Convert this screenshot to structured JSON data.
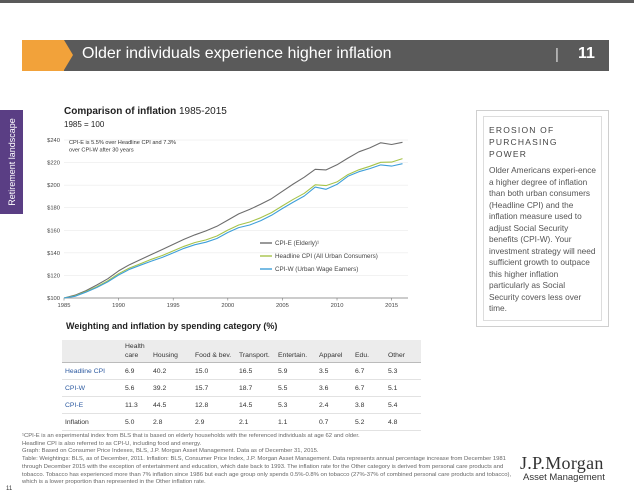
{
  "header": {
    "title": "Older individuals experience higher inflation",
    "separator": "|",
    "page_number": "11"
  },
  "side_tab": {
    "label": "Retirement landscape"
  },
  "chart_title": {
    "bold": "Comparison of inflation",
    "range": "1985-2015",
    "subtitle": "1985 = 100"
  },
  "chart_data": {
    "type": "line",
    "title": "Comparison of inflation 1985-2015",
    "subtitle": "1985 = 100",
    "x_ticks": [
      "1985",
      "1990",
      "1995",
      "2000",
      "2005",
      "2010",
      "2015"
    ],
    "y_ticks": [
      "$100",
      "$120",
      "$140",
      "$160",
      "$180",
      "$200",
      "$220",
      "$240"
    ],
    "xlim": [
      1985,
      2016.5
    ],
    "ylim": [
      100,
      240
    ],
    "annotation": "CPI-E is 5.5% over Headline CPI and 7.3% over CPI-W after 30 years",
    "legend_position": "lower-right",
    "x": [
      1985,
      1986,
      1987,
      1988,
      1989,
      1990,
      1991,
      1992,
      1993,
      1994,
      1995,
      1996,
      1997,
      1998,
      1999,
      2000,
      2001,
      2002,
      2003,
      2004,
      2005,
      2006,
      2007,
      2008,
      2009,
      2010,
      2011,
      2012,
      2013,
      2014,
      2015,
      2016
    ],
    "series": [
      {
        "name": "CPI-E (Elderly)¹",
        "color": "#6d6d6d",
        "values": [
          100,
          102.5,
          106.5,
          111.5,
          117,
          124,
          129.5,
          134,
          138.5,
          143,
          147.5,
          152,
          156,
          159.5,
          163.5,
          169,
          174.5,
          178.5,
          183,
          188,
          194.5,
          201,
          207,
          214,
          213.5,
          218,
          224,
          229.5,
          233,
          237.5,
          236,
          238
        ]
      },
      {
        "name": "Headline CPI (All Urban Consumers)",
        "color": "#a6c34a",
        "values": [
          100,
          101.9,
          105.6,
          110,
          115.2,
          121.5,
          126.6,
          130.4,
          134.3,
          137.7,
          141.7,
          145.8,
          149.2,
          151.5,
          154.9,
          160.2,
          164.7,
          167.3,
          171.1,
          175.7,
          181.6,
          187.5,
          192.8,
          200.3,
          199.6,
          202.9,
          209.3,
          213.6,
          216.7,
          220.2,
          220.4,
          223.5
        ]
      },
      {
        "name": "CPI-W (Urban Wage Earners)",
        "color": "#3e9fd9",
        "values": [
          100,
          101.5,
          105.1,
          109.3,
          114.3,
          120.4,
          125.4,
          129.1,
          132.7,
          136,
          140,
          144,
          147.2,
          149.4,
          152.7,
          158,
          162.4,
          164.7,
          168.5,
          173.3,
          179.3,
          185,
          190.4,
          198.3,
          196.3,
          200.7,
          207.8,
          211.9,
          214.7,
          217.9,
          216.9,
          219
        ]
      }
    ]
  },
  "sidebar": {
    "heading": "EROSION OF PURCHASING POWER",
    "body": "Older Americans experi-ence a higher degree of inflation than both urban consumers (Headline CPI) and the inflation measure used to adjust Social Security benefits (CPI-W). Your investment strategy will need sufficient growth to outpace this higher inflation particularly as Social Security covers less over time."
  },
  "weights_table": {
    "title": "Weighting and inflation by spending category (%)",
    "headers": [
      "",
      "Health care",
      "Housing",
      "Food & bev.",
      "Transport.",
      "Entertain.",
      "Apparel",
      "Edu.",
      "Other"
    ],
    "rows": [
      [
        "Headline CPI",
        "6.9",
        "40.2",
        "15.0",
        "16.5",
        "5.9",
        "3.5",
        "6.7",
        "5.3"
      ],
      [
        "CPI-W",
        "5.6",
        "39.2",
        "15.7",
        "18.7",
        "5.5",
        "3.6",
        "6.7",
        "5.1"
      ],
      [
        "CPI-E",
        "11.3",
        "44.5",
        "12.8",
        "14.5",
        "5.3",
        "2.4",
        "3.8",
        "5.4"
      ],
      [
        "Inflation",
        "5.0",
        "2.8",
        "2.9",
        "2.1",
        "1.1",
        "0.7",
        "5.2",
        "4.8"
      ]
    ]
  },
  "footnotes": [
    "¹CPI-E is an experimental index from BLS that is based on elderly households with the referenced individuals at age 62 and older.",
    "Headline CPI is also referred to as CPI-U, including food and energy.",
    "Graph: Based on Consumer Price Indexes, BLS, J.P. Morgan Asset Management. Data as of December 31, 2015.",
    "Table: Weightings: BLS, as of December, 2011. Inflation: BLS, Consumer Price Index, J.P. Morgan Asset Management. Data represents annual percentage increase from December 1981 through December 2015 with the exception of entertainment and education, which date back to 1993. The inflation rate for the Other category is derived from personal care products and tobacco. Tobacco has experienced more than 7% inflation since 1986 but each age group only spends 0.5%-0.8% on tobacco (27%-37% of combined personal care products and tobacco), which is a lower proportion than represented in the Other inflation rate."
  ],
  "footer": {
    "page": "11",
    "logo": "J.P.Morgan",
    "logo_sub": "Asset Management"
  }
}
